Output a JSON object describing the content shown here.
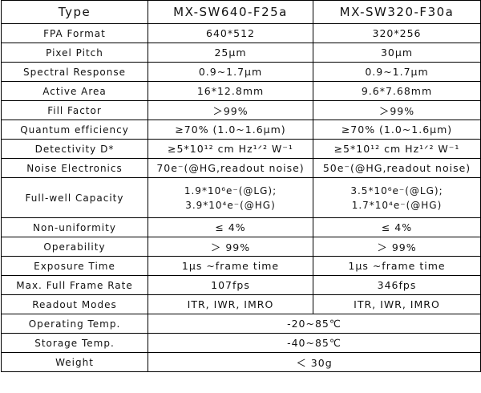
{
  "table": {
    "header": [
      "Type",
      "MX-SW640-F25a",
      "MX-SW320-F30a"
    ],
    "rows": [
      [
        "FPA Format",
        "640*512",
        "320*256"
      ],
      [
        "Pixel Pitch",
        "25μm",
        "30μm"
      ],
      [
        "Spectral Response",
        "0.9~1.7μm",
        "0.9~1.7μm"
      ],
      [
        "Active Area",
        "16*12.8mm",
        "9.6*7.68mm"
      ],
      [
        "Fill Factor",
        "＞99%",
        "＞99%"
      ],
      [
        "Quantum efficiency",
        "≥70% (1.0~1.6μm)",
        "≥70% (1.0~1.6μm)"
      ],
      [
        "Detectivity D*",
        "≥5*10¹² cm Hz¹ᐟ² W⁻¹",
        "≥5*10¹² cm Hz¹ᐟ² W⁻¹"
      ],
      [
        "Noise Electronics",
        "70e⁻(@HG,readout noise)",
        "50e⁻(@HG,readout noise)"
      ],
      [
        "Full-well Capacity",
        [
          "1.9*10⁶e⁻(@LG);",
          "3.9*10⁴e⁻(@HG)"
        ],
        [
          "3.5*10⁶e⁻(@LG);",
          "1.7*10⁴e⁻(@HG)"
        ]
      ],
      [
        "Non-uniformity",
        "≤ 4%",
        "≤ 4%"
      ],
      [
        "Operability",
        "＞ 99%",
        "＞ 99%"
      ],
      [
        "Exposure Time",
        "1μs ~frame time",
        "1μs ~frame time"
      ],
      [
        "Max. Full Frame Rate",
        "107fps",
        "346fps"
      ],
      [
        "Readout Modes",
        "ITR, IWR, IMRO",
        "ITR, IWR, IMRO"
      ],
      [
        "Operating Temp.",
        "-20~85℃"
      ],
      [
        "Storage Temp.",
        "-40~85℃"
      ],
      [
        "Weight",
        "＜ 30g"
      ]
    ]
  }
}
